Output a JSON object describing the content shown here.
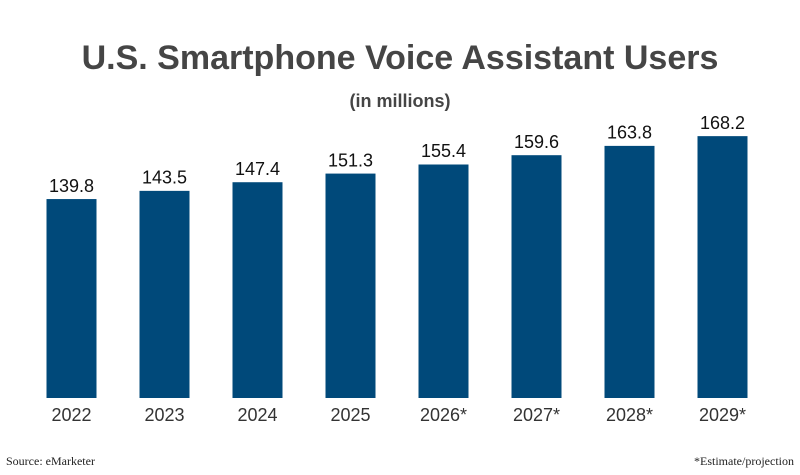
{
  "chart_data": {
    "type": "bar",
    "title": "U.S. Smartphone Voice Assistant Users",
    "subtitle": "(in millions)",
    "categories": [
      "2022",
      "2023",
      "2024",
      "2025",
      "2026*",
      "2027*",
      "2028*",
      "2029*"
    ],
    "values": [
      139.8,
      143.5,
      147.4,
      151.3,
      155.4,
      159.6,
      163.8,
      168.2
    ],
    "color": "#00497a",
    "ylim": [
      50,
      180
    ],
    "source": "Source: eMarketer",
    "footnote": "*Estimate/projection"
  }
}
